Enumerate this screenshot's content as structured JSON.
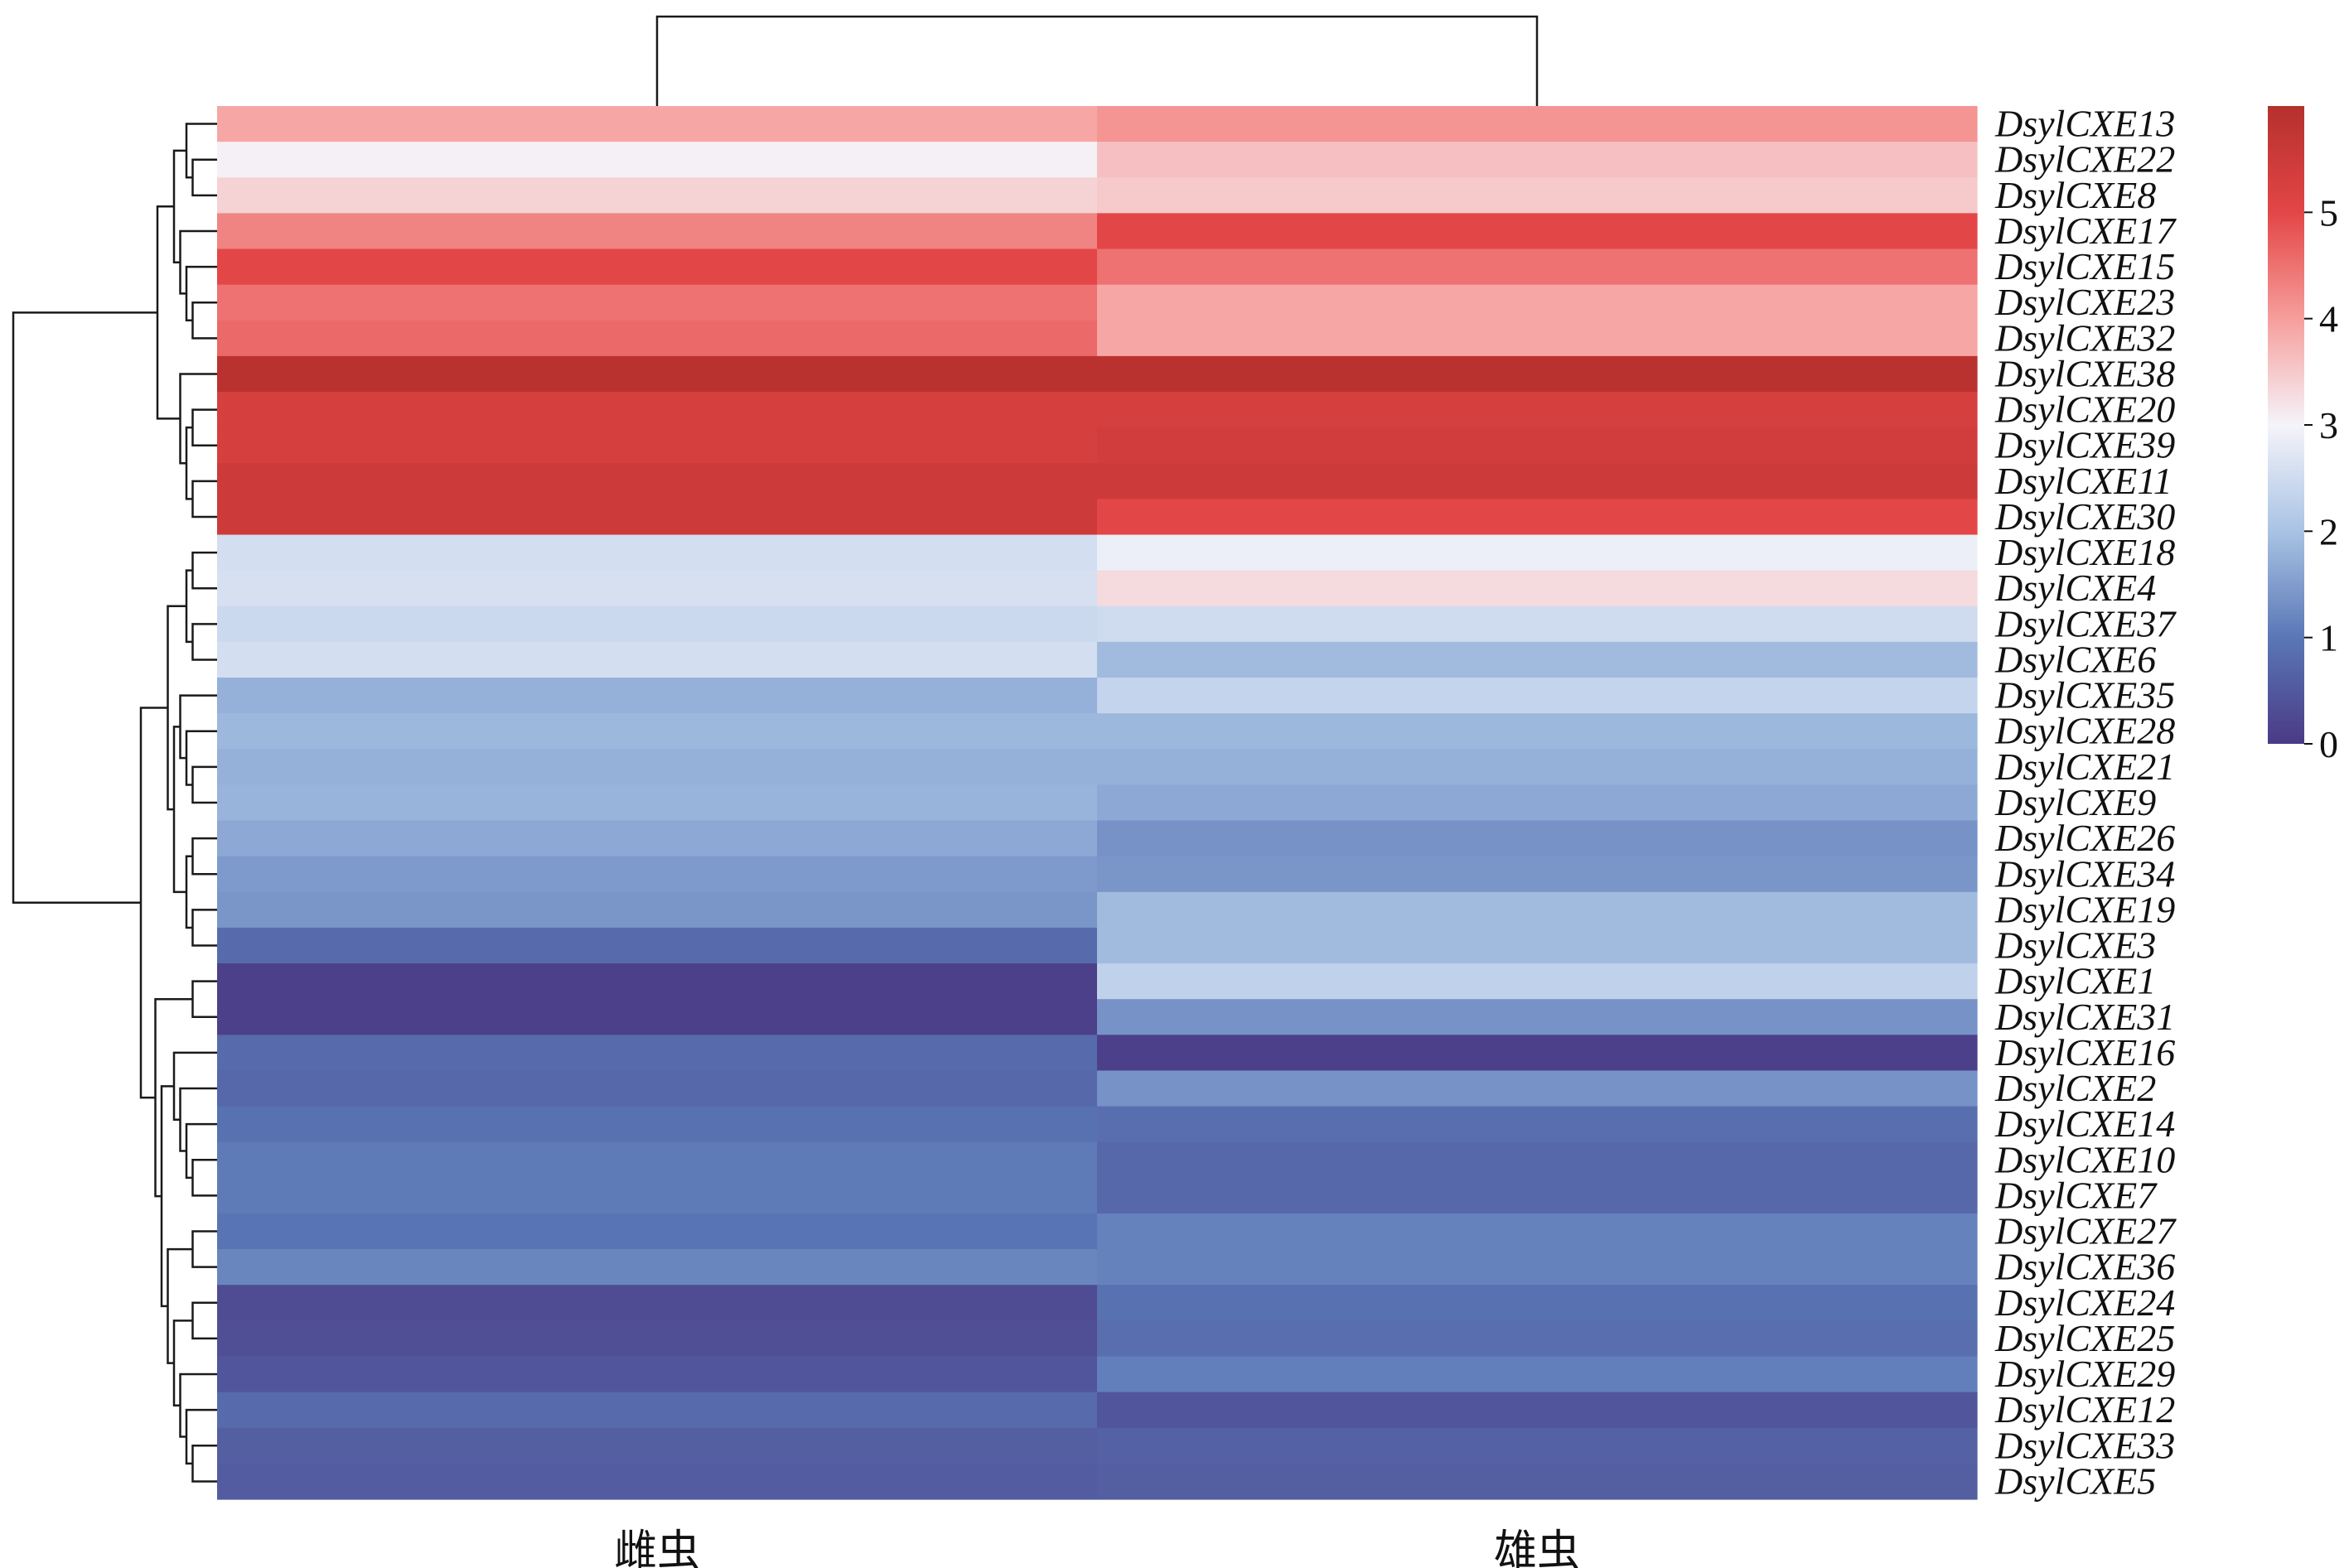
{
  "chart_data": {
    "type": "heatmap",
    "columns": [
      "雌虫",
      "雄虫"
    ],
    "rows": [
      "DsylCXE13",
      "DsylCXE22",
      "DsylCXE8",
      "DsylCXE17",
      "DsylCXE15",
      "DsylCXE23",
      "DsylCXE32",
      "DsylCXE38",
      "DsylCXE20",
      "DsylCXE39",
      "DsylCXE11",
      "DsylCXE30",
      "DsylCXE18",
      "DsylCXE4",
      "DsylCXE37",
      "DsylCXE6",
      "DsylCXE35",
      "DsylCXE28",
      "DsylCXE21",
      "DsylCXE9",
      "DsylCXE26",
      "DsylCXE34",
      "DsylCXE19",
      "DsylCXE3",
      "DsylCXE1",
      "DsylCXE31",
      "DsylCXE16",
      "DsylCXE2",
      "DsylCXE14",
      "DsylCXE10",
      "DsylCXE7",
      "DsylCXE27",
      "DsylCXE36",
      "DsylCXE24",
      "DsylCXE25",
      "DsylCXE29",
      "DsylCXE12",
      "DsylCXE33",
      "DsylCXE5"
    ],
    "values": [
      [
        3.9,
        4.1
      ],
      [
        3.05,
        3.6
      ],
      [
        3.4,
        3.5
      ],
      [
        4.3,
        5.0
      ],
      [
        5.0,
        4.5
      ],
      [
        4.5,
        3.9
      ],
      [
        4.6,
        3.9
      ],
      [
        5.9,
        5.9
      ],
      [
        5.3,
        5.3
      ],
      [
        5.3,
        5.4
      ],
      [
        5.5,
        5.5
      ],
      [
        5.5,
        5.0
      ],
      [
        2.55,
        2.9
      ],
      [
        2.6,
        3.3
      ],
      [
        2.45,
        2.5
      ],
      [
        2.55,
        1.9
      ],
      [
        1.75,
        2.35
      ],
      [
        1.85,
        1.85
      ],
      [
        1.75,
        1.75
      ],
      [
        1.8,
        1.65
      ],
      [
        1.65,
        1.35
      ],
      [
        1.45,
        1.4
      ],
      [
        1.4,
        1.9
      ],
      [
        0.8,
        1.9
      ],
      [
        0.1,
        2.3
      ],
      [
        0.1,
        1.35
      ],
      [
        0.8,
        0.1
      ],
      [
        0.75,
        1.35
      ],
      [
        0.9,
        0.85
      ],
      [
        1.05,
        0.75
      ],
      [
        1.05,
        0.75
      ],
      [
        0.95,
        1.15
      ],
      [
        1.2,
        1.15
      ],
      [
        0.3,
        0.9
      ],
      [
        0.35,
        0.85
      ],
      [
        0.45,
        1.1
      ],
      [
        0.8,
        0.45
      ],
      [
        0.6,
        0.65
      ],
      [
        0.55,
        0.6
      ]
    ],
    "colorbar": {
      "min": 0,
      "max": 6,
      "ticks": [
        0,
        1,
        2,
        3,
        4,
        5
      ],
      "colors": [
        "#4a3a85",
        "#5a77b6",
        "#a9c3e4",
        "#f5f4fa",
        "#f69e9c",
        "#e34646",
        "#b5302c"
      ]
    },
    "dendrogram": {
      "rows": true,
      "columns": true
    }
  }
}
